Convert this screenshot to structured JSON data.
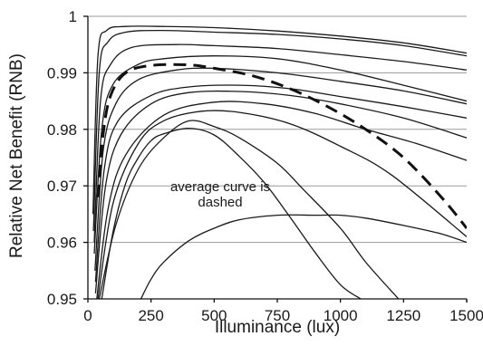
{
  "chart_data": {
    "type": "line",
    "title": "",
    "xlabel": "Illuminance (lux)",
    "ylabel": "Relative Net Benefit (RNB)",
    "xlim": [
      0,
      1500
    ],
    "ylim": [
      0.95,
      1.0
    ],
    "xticks": [
      0,
      250,
      500,
      750,
      1000,
      1250,
      1500
    ],
    "xtick_labels": [
      "0",
      "250",
      "500",
      "750",
      "1000",
      "1250",
      "1500"
    ],
    "yticks": [
      0.95,
      0.96,
      0.97,
      0.98,
      0.99,
      1.0
    ],
    "ytick_labels": [
      "0.95",
      "0.96",
      "0.97",
      "0.98",
      "0.99",
      "1"
    ],
    "grid": "horizontal",
    "annotation": {
      "text_lines": [
        "average curve is",
        "dashed"
      ],
      "x": 550,
      "y": 0.9755
    },
    "series": [
      {
        "style": "solid",
        "x": [
          20,
          40,
          75,
          150,
          300,
          500,
          750,
          1000,
          1250,
          1500
        ],
        "y": [
          0.965,
          0.993,
          0.9975,
          0.9982,
          0.9982,
          0.998,
          0.9974,
          0.9965,
          0.9953,
          0.9935
        ]
      },
      {
        "style": "solid",
        "x": [
          22,
          45,
          80,
          150,
          300,
          500,
          750,
          1000,
          1250,
          1500
        ],
        "y": [
          0.962,
          0.99,
          0.9955,
          0.9972,
          0.9975,
          0.9972,
          0.9968,
          0.996,
          0.9948,
          0.993
        ]
      },
      {
        "style": "solid",
        "x": [
          25,
          50,
          90,
          175,
          350,
          500,
          750,
          1000,
          1250,
          1500
        ],
        "y": [
          0.96,
          0.985,
          0.9915,
          0.9945,
          0.995,
          0.9948,
          0.9943,
          0.9932,
          0.992,
          0.9905
        ]
      },
      {
        "style": "solid",
        "x": [
          25,
          55,
          100,
          200,
          300,
          500,
          750,
          1000,
          1250,
          1500
        ],
        "y": [
          0.958,
          0.98,
          0.988,
          0.9915,
          0.9925,
          0.993,
          0.9925,
          0.9905,
          0.9878,
          0.985
        ]
      },
      {
        "style": "solid",
        "x": [
          28,
          60,
          110,
          200,
          350,
          500,
          750,
          1000,
          1250,
          1500
        ],
        "y": [
          0.955,
          0.976,
          0.9845,
          0.9888,
          0.9905,
          0.9908,
          0.99,
          0.9885,
          0.9868,
          0.9845
        ]
      },
      {
        "style": "solid",
        "x": [
          30,
          65,
          120,
          250,
          400,
          600,
          800,
          1000,
          1250,
          1500
        ],
        "y": [
          0.953,
          0.973,
          0.9815,
          0.986,
          0.9875,
          0.9878,
          0.9872,
          0.9858,
          0.984,
          0.982
        ]
      },
      {
        "style": "solid",
        "x": [
          30,
          70,
          130,
          250,
          400,
          600,
          800,
          1000,
          1250,
          1500
        ],
        "y": [
          0.951,
          0.97,
          0.979,
          0.9845,
          0.9865,
          0.9867,
          0.986,
          0.9845,
          0.982,
          0.9785
        ]
      },
      {
        "style": "solid",
        "x": [
          35,
          80,
          150,
          300,
          500,
          700,
          900,
          1100,
          1300,
          1500
        ],
        "y": [
          0.95,
          0.966,
          0.9755,
          0.9825,
          0.9848,
          0.9845,
          0.9828,
          0.98,
          0.9775,
          0.9745
        ]
      },
      {
        "style": "solid",
        "x": [
          40,
          100,
          200,
          300,
          450,
          600,
          800,
          1000,
          1200,
          1500
        ],
        "y": [
          0.95,
          0.967,
          0.9775,
          0.9815,
          0.9832,
          0.983,
          0.981,
          0.977,
          0.972,
          0.961
        ]
      },
      {
        "style": "solid",
        "x": [
          45,
          110,
          200,
          300,
          400,
          500,
          600,
          750,
          850,
          1000,
          1100,
          1230
        ],
        "y": [
          0.95,
          0.963,
          0.973,
          0.9785,
          0.9815,
          0.9805,
          0.9785,
          0.974,
          0.9695,
          0.9625,
          0.9565,
          0.95
        ]
      },
      {
        "style": "solid",
        "x": [
          55,
          100,
          150,
          200,
          250,
          300,
          400,
          500,
          600,
          700,
          800,
          900,
          1000,
          1080
        ],
        "y": [
          0.95,
          0.962,
          0.9705,
          0.975,
          0.978,
          0.9792,
          0.9802,
          0.979,
          0.9752,
          0.9705,
          0.9645,
          0.9582,
          0.9525,
          0.95
        ]
      },
      {
        "style": "solid",
        "x": [
          210,
          250,
          300,
          400,
          500,
          600,
          750,
          900,
          1000,
          1100,
          1250,
          1400,
          1500
        ],
        "y": [
          0.95,
          0.9535,
          0.9565,
          0.9603,
          0.9625,
          0.964,
          0.9648,
          0.9648,
          0.9648,
          0.9643,
          0.963,
          0.9615,
          0.96
        ]
      },
      {
        "style": "dashed",
        "x": [
          40,
          60,
          90,
          150,
          250,
          400,
          500,
          650,
          800,
          950,
          1100,
          1250,
          1400,
          1500
        ],
        "y": [
          0.968,
          0.979,
          0.986,
          0.99,
          0.9913,
          0.9914,
          0.9908,
          0.9895,
          0.9872,
          0.984,
          0.98,
          0.975,
          0.968,
          0.9625
        ]
      }
    ]
  }
}
